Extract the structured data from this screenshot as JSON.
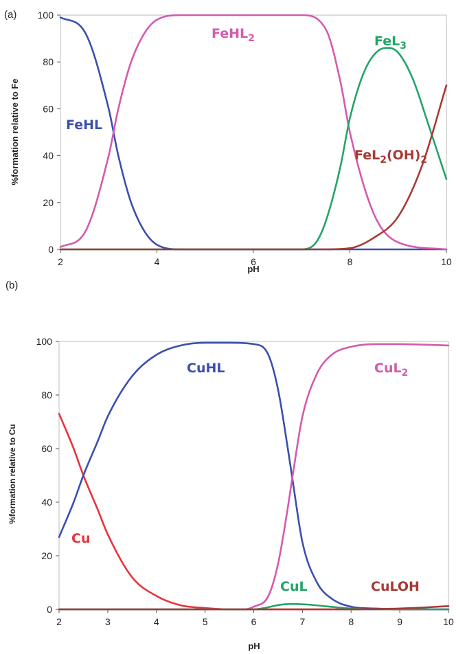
{
  "chart_data": [
    {
      "panel_label": "(a)",
      "type": "line",
      "xlabel": "pH",
      "ylabel": "%formation relative to Fe",
      "xlim": [
        2,
        10
      ],
      "ylim": [
        0,
        100
      ],
      "x_ticks": [
        "2",
        "4",
        "6",
        "8",
        "10"
      ],
      "y_ticks": [
        "0",
        "20",
        "40",
        "60",
        "80",
        "100"
      ],
      "series": [
        {
          "name": "FeHL",
          "color": "#3a4fb0",
          "x": [
            2,
            2.5,
            3.0,
            3.2,
            3.5,
            4.0,
            4.5,
            6,
            10
          ],
          "y": [
            99,
            93,
            60,
            40,
            18,
            2,
            0,
            0,
            0
          ]
        },
        {
          "name": "FeHL2",
          "color": "#d45aae",
          "x": [
            2,
            2.5,
            3.0,
            3.2,
            3.5,
            4.0,
            4.5,
            7.0,
            7.5,
            7.8,
            8.0,
            8.5,
            9.0,
            10
          ],
          "y": [
            1,
            7,
            40,
            60,
            82,
            98,
            100,
            100,
            94,
            72,
            50,
            15,
            3,
            0
          ]
        },
        {
          "name": "FeL3",
          "color": "#22a468",
          "x": [
            2,
            7.0,
            7.3,
            7.5,
            7.8,
            8.0,
            8.3,
            8.6,
            8.8,
            9.0,
            9.3,
            9.6,
            10
          ],
          "y": [
            0,
            0,
            3,
            12,
            35,
            56,
            76,
            85,
            86,
            84,
            73,
            55,
            30
          ]
        },
        {
          "name": "FeL2(OH)2",
          "color": "#a73a35",
          "x": [
            2,
            7.5,
            8.0,
            8.5,
            9.0,
            9.5,
            10
          ],
          "y": [
            0,
            0,
            0.5,
            5,
            14,
            36,
            70
          ]
        }
      ],
      "annotations": [
        {
          "text": "FeHL",
          "color": "#3a4fb0"
        },
        {
          "text": "FeHL",
          "sub": "2",
          "color": "#d45aae"
        },
        {
          "text": "FeL",
          "sub": "3",
          "color": "#22a468"
        },
        {
          "text": "FeL",
          "sub": "2",
          "text2": "(OH)",
          "sub2": "2",
          "color": "#a73a35"
        }
      ]
    },
    {
      "panel_label": "(b)",
      "type": "line",
      "xlabel": "pH",
      "ylabel": "%formation relative to Cu",
      "xlim": [
        2,
        10
      ],
      "ylim": [
        0,
        100
      ],
      "x_ticks": [
        "2",
        "3",
        "4",
        "5",
        "6",
        "7",
        "8",
        "9",
        "10"
      ],
      "y_ticks": [
        "0",
        "20",
        "40",
        "60",
        "80",
        "100"
      ],
      "series": [
        {
          "name": "Cu",
          "color": "#e8333a",
          "x": [
            2,
            2.3,
            2.5,
            2.8,
            3.0,
            3.5,
            4.0,
            4.5,
            5.0,
            5.5,
            6,
            10
          ],
          "y": [
            73,
            60,
            50,
            37,
            28,
            12,
            5,
            1.5,
            0.5,
            0,
            0,
            0
          ]
        },
        {
          "name": "CuHL",
          "color": "#3a4fb0",
          "x": [
            2,
            2.3,
            2.5,
            2.8,
            3.0,
            3.5,
            4.0,
            4.5,
            5.0,
            5.5,
            6.0,
            6.3,
            6.5,
            6.7,
            6.8,
            7.0,
            7.3,
            7.6,
            8.0,
            8.5,
            9,
            10
          ],
          "y": [
            27,
            40,
            50,
            63,
            72,
            87,
            95,
            98.5,
            99.5,
            99.5,
            99,
            95,
            82,
            60,
            48,
            25,
            10,
            4,
            1,
            0.3,
            0,
            0
          ]
        },
        {
          "name": "CuL2",
          "color": "#d45aae",
          "x": [
            2,
            5.8,
            6.0,
            6.3,
            6.5,
            6.7,
            6.8,
            7.0,
            7.3,
            7.6,
            8.0,
            8.5,
            9.0,
            9.5,
            10
          ],
          "y": [
            0,
            0,
            1,
            5,
            17,
            38,
            50,
            72,
            88,
            95,
            98,
            99,
            99,
            98.8,
            98.5
          ]
        },
        {
          "name": "CuL",
          "color": "#22a468",
          "x": [
            2,
            6.0,
            6.3,
            6.5,
            6.8,
            7.1,
            7.5,
            8.0,
            8.5,
            10
          ],
          "y": [
            0,
            0,
            0.8,
            1.6,
            2.0,
            1.8,
            1.1,
            0.3,
            0,
            0
          ]
        },
        {
          "name": "CuLOH",
          "color": "#a73a35",
          "x": [
            2,
            8.0,
            8.5,
            9.0,
            9.5,
            10
          ],
          "y": [
            0,
            0,
            0.1,
            0.3,
            0.7,
            1.2
          ]
        }
      ],
      "annotations": [
        {
          "text": "Cu",
          "color": "#e8333a"
        },
        {
          "text": "CuHL",
          "color": "#3a4fb0"
        },
        {
          "text": "CuL",
          "sub": "2",
          "color": "#d45aae"
        },
        {
          "text": "CuL",
          "color": "#22a468"
        },
        {
          "text": "CuLOH",
          "color": "#a73a35"
        }
      ]
    }
  ]
}
